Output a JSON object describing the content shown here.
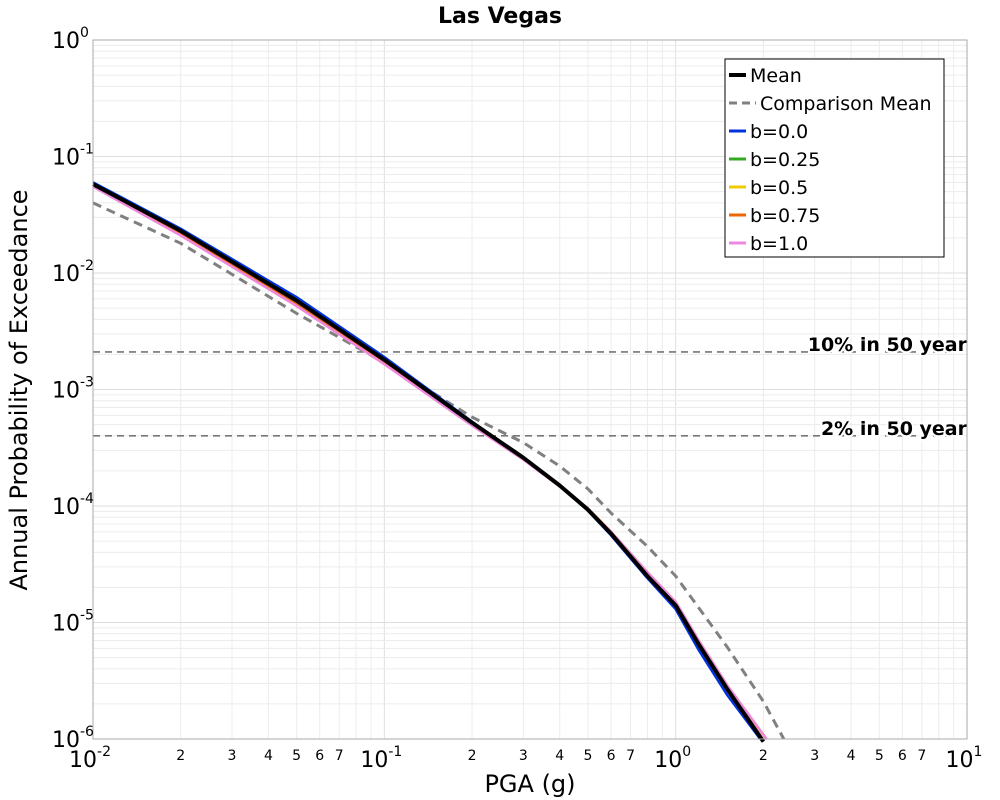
{
  "chart_data": {
    "type": "line",
    "title": "Las Vegas",
    "xlabel": "PGA (g)",
    "ylabel": "Annual Probability of Exceedance",
    "xscale": "log",
    "yscale": "log",
    "xlim": [
      0.01,
      10
    ],
    "ylim": [
      1e-06,
      1
    ],
    "grid": true,
    "legend_position": "top-right",
    "x_major_ticks": [
      {
        "value": 0.01,
        "base": "10",
        "exp": "-2"
      },
      {
        "value": 0.1,
        "base": "10",
        "exp": "-1"
      },
      {
        "value": 1,
        "base": "10",
        "exp": "0"
      },
      {
        "value": 10,
        "base": "10",
        "exp": "1"
      }
    ],
    "x_minor_ticks": [
      {
        "value": 0.02,
        "label": "2"
      },
      {
        "value": 0.03,
        "label": "3"
      },
      {
        "value": 0.04,
        "label": "4"
      },
      {
        "value": 0.05,
        "label": "5"
      },
      {
        "value": 0.06,
        "label": "6"
      },
      {
        "value": 0.07,
        "label": "7"
      },
      {
        "value": 0.2,
        "label": "2"
      },
      {
        "value": 0.3,
        "label": "3"
      },
      {
        "value": 0.4,
        "label": "4"
      },
      {
        "value": 0.5,
        "label": "5"
      },
      {
        "value": 0.6,
        "label": "6"
      },
      {
        "value": 0.7,
        "label": "7"
      },
      {
        "value": 2,
        "label": "2"
      },
      {
        "value": 3,
        "label": "3"
      },
      {
        "value": 4,
        "label": "4"
      },
      {
        "value": 5,
        "label": "5"
      },
      {
        "value": 6,
        "label": "6"
      },
      {
        "value": 7,
        "label": "7"
      }
    ],
    "y_major_ticks": [
      {
        "value": 1,
        "base": "10",
        "exp": "0"
      },
      {
        "value": 0.1,
        "base": "10",
        "exp": "-1"
      },
      {
        "value": 0.01,
        "base": "10",
        "exp": "-2"
      },
      {
        "value": 0.001,
        "base": "10",
        "exp": "-3"
      },
      {
        "value": 0.0001,
        "base": "10",
        "exp": "-4"
      },
      {
        "value": 1e-05,
        "base": "10",
        "exp": "-5"
      },
      {
        "value": 1e-06,
        "base": "10",
        "exp": "-6"
      }
    ],
    "reference_lines": [
      {
        "label": "10% in 50 year",
        "y": 0.0021
      },
      {
        "label": "2% in 50 year",
        "y": 0.0004
      }
    ],
    "series": [
      {
        "name": "Mean",
        "color": "#000000",
        "style": "solid",
        "weight": "heavy",
        "x": [
          0.01,
          0.02,
          0.05,
          0.1,
          0.2,
          0.3,
          0.4,
          0.5,
          0.6,
          0.8,
          1.0,
          1.2,
          1.5,
          2.0
        ],
        "y": [
          0.058,
          0.023,
          0.0058,
          0.0018,
          0.00052,
          0.00026,
          0.00015,
          9.3e-05,
          5.8e-05,
          2.5e-05,
          1.4e-05,
          6.5e-06,
          2.7e-06,
          9.5e-07
        ]
      },
      {
        "name": "Comparison Mean",
        "color": "#808080",
        "style": "dashed",
        "weight": "medium",
        "x": [
          0.01,
          0.02,
          0.05,
          0.1,
          0.2,
          0.3,
          0.4,
          0.5,
          0.6,
          0.8,
          1.0,
          1.5,
          2.0,
          2.35
        ],
        "y": [
          0.04,
          0.018,
          0.0045,
          0.0017,
          0.00058,
          0.00035,
          0.00022,
          0.00014,
          8.7e-05,
          4.5e-05,
          2.5e-05,
          6.2e-06,
          2.1e-06,
          1e-06
        ]
      },
      {
        "name": "b=0.0",
        "color": "#0033dd",
        "style": "solid",
        "weight": "normal",
        "x": [
          0.01,
          0.02,
          0.05,
          0.1,
          0.2,
          0.3,
          0.4,
          0.5,
          0.6,
          0.8,
          1.0,
          1.2,
          1.5,
          1.95
        ],
        "y": [
          0.06,
          0.024,
          0.0062,
          0.0019,
          0.00053,
          0.00026,
          0.00015,
          9.1e-05,
          5.6e-05,
          2.4e-05,
          1.3e-05,
          5.8e-06,
          2.4e-06,
          1e-06
        ]
      },
      {
        "name": "b=0.25",
        "color": "#33aa22",
        "style": "solid",
        "weight": "normal",
        "x": [
          0.01,
          0.02,
          0.05,
          0.1,
          0.2,
          0.3,
          0.4,
          0.5,
          0.6,
          0.8,
          1.0,
          1.2,
          1.5,
          2.0
        ],
        "y": [
          0.058,
          0.023,
          0.0058,
          0.0018,
          0.00052,
          0.00026,
          0.00015,
          9.3e-05,
          5.8e-05,
          2.5e-05,
          1.4e-05,
          6.5e-06,
          2.7e-06,
          9.5e-07
        ]
      },
      {
        "name": "b=0.5",
        "color": "#eecc00",
        "style": "solid",
        "weight": "normal",
        "x": [
          0.01,
          0.02,
          0.05,
          0.1,
          0.2,
          0.3,
          0.4,
          0.5,
          0.6,
          0.8,
          1.0,
          1.2,
          1.5,
          2.0
        ],
        "y": [
          0.057,
          0.0225,
          0.0057,
          0.00178,
          0.00052,
          0.00026,
          0.00015,
          9.4e-05,
          5.9e-05,
          2.6e-05,
          1.45e-05,
          6.8e-06,
          2.8e-06,
          9.8e-07
        ]
      },
      {
        "name": "b=0.75",
        "color": "#ee6600",
        "style": "solid",
        "weight": "normal",
        "x": [
          0.01,
          0.02,
          0.05,
          0.1,
          0.2,
          0.3,
          0.4,
          0.5,
          0.6,
          0.8,
          1.0,
          1.2,
          1.5,
          2.05
        ],
        "y": [
          0.056,
          0.022,
          0.0055,
          0.00172,
          0.00051,
          0.00026,
          0.00015,
          9.5e-05,
          6e-05,
          2.7e-05,
          1.5e-05,
          7e-06,
          2.9e-06,
          1e-06
        ]
      },
      {
        "name": "b=1.0",
        "color": "#ee88dd",
        "style": "solid",
        "weight": "normal",
        "x": [
          0.01,
          0.02,
          0.05,
          0.1,
          0.2,
          0.3,
          0.4,
          0.5,
          0.6,
          0.8,
          1.0,
          1.2,
          1.5,
          2.05
        ],
        "y": [
          0.055,
          0.021,
          0.0052,
          0.00165,
          0.00049,
          0.00025,
          0.000147,
          9.4e-05,
          6e-05,
          2.7e-05,
          1.5e-05,
          7e-06,
          2.9e-06,
          1e-06
        ]
      }
    ]
  }
}
